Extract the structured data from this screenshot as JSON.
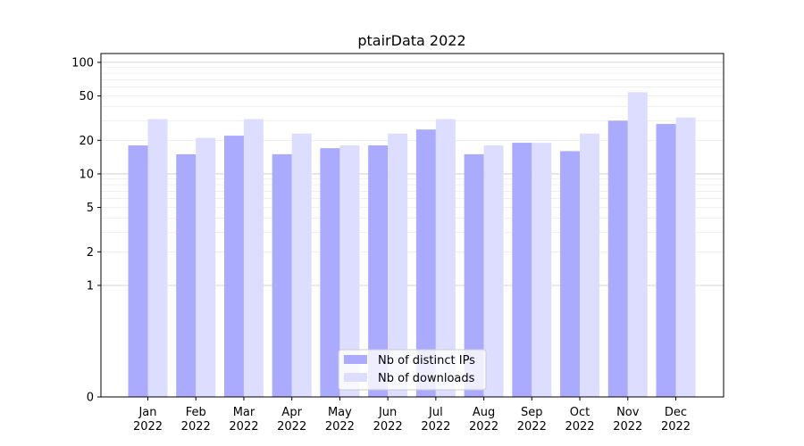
{
  "chart_data": {
    "type": "bar",
    "title": "ptairData 2022",
    "xlabel": "",
    "ylabel": "",
    "y_scale": "symlog",
    "ylim": [
      0,
      120
    ],
    "y_ticks": [
      0,
      1,
      2,
      5,
      10,
      20,
      50,
      100
    ],
    "y_tick_labels": [
      "0",
      "1",
      "2",
      "5",
      "10",
      "20",
      "50",
      "100"
    ],
    "grid": true,
    "legend_position": "bottom-center",
    "categories": [
      "Jan\n2022",
      "Feb\n2022",
      "Mar\n2022",
      "Apr\n2022",
      "May\n2022",
      "Jun\n2022",
      "Jul\n2022",
      "Aug\n2022",
      "Sep\n2022",
      "Oct\n2022",
      "Nov\n2022",
      "Dec\n2022"
    ],
    "category_labels": [
      [
        "Jan",
        "2022"
      ],
      [
        "Feb",
        "2022"
      ],
      [
        "Mar",
        "2022"
      ],
      [
        "Apr",
        "2022"
      ],
      [
        "May",
        "2022"
      ],
      [
        "Jun",
        "2022"
      ],
      [
        "Jul",
        "2022"
      ],
      [
        "Aug",
        "2022"
      ],
      [
        "Sep",
        "2022"
      ],
      [
        "Oct",
        "2022"
      ],
      [
        "Nov",
        "2022"
      ],
      [
        "Dec",
        "2022"
      ]
    ],
    "series": [
      {
        "name": "Nb of distinct IPs",
        "color": "#aaaaff",
        "values": [
          18,
          15,
          22,
          15,
          17,
          18,
          25,
          15,
          19,
          16,
          30,
          28
        ]
      },
      {
        "name": "Nb of downloads",
        "color": "#ddddff",
        "values": [
          31,
          21,
          31,
          23,
          18,
          23,
          31,
          18,
          19,
          23,
          54,
          32
        ]
      }
    ]
  }
}
